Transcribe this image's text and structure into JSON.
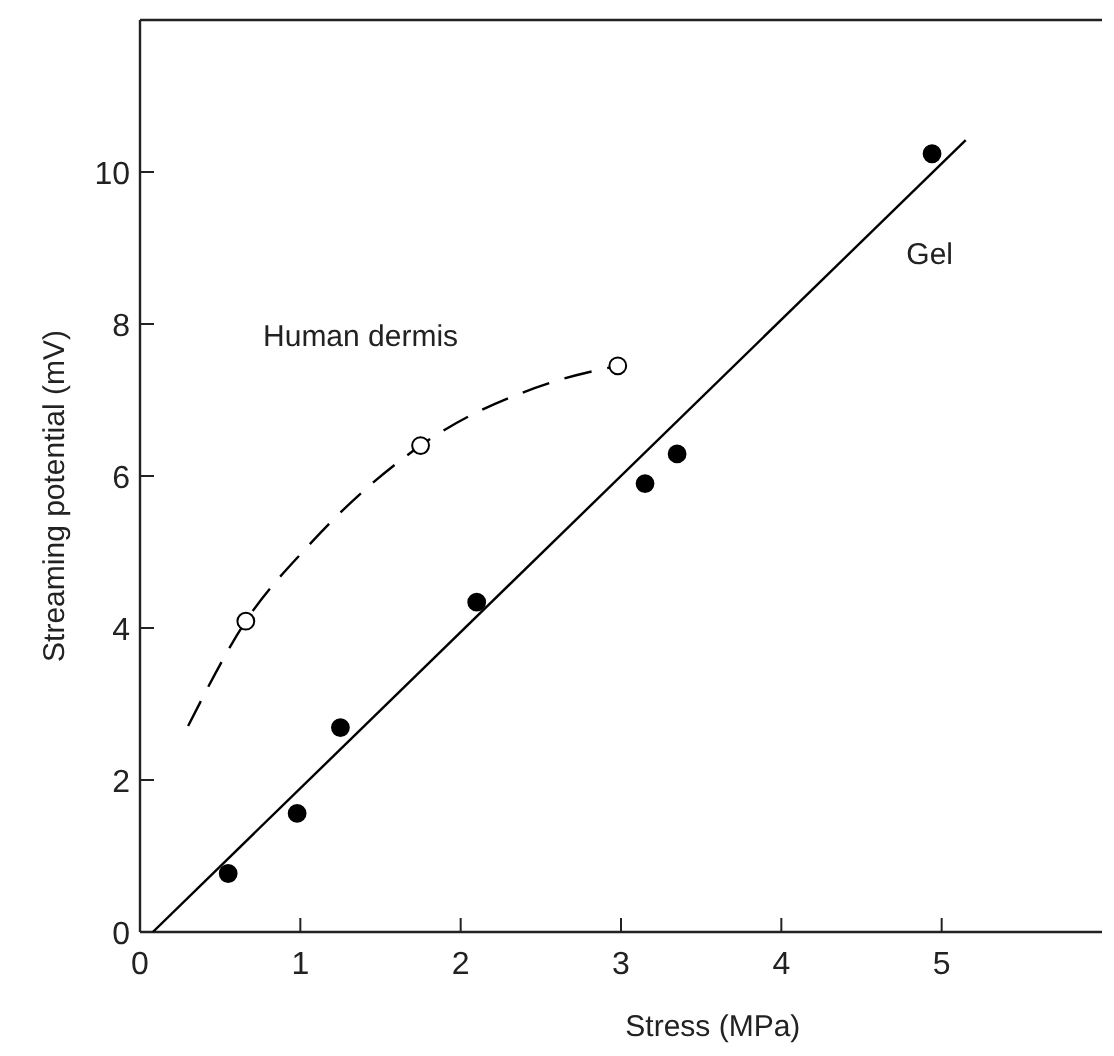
{
  "chart_data": {
    "type": "scatter",
    "xlabel": "Stress (MPa)",
    "ylabel": "Streaming potential (mV)",
    "xlim": [
      0,
      6
    ],
    "ylim": [
      0,
      12
    ],
    "xticks": [
      0,
      1,
      2,
      3,
      4,
      5
    ],
    "yticks": [
      0,
      2,
      4,
      6,
      8,
      10
    ],
    "grid": false,
    "series": [
      {
        "type": "scatter",
        "color": "#000000",
        "marker": "circle",
        "x": [
          0.55,
          0.98,
          1.25,
          2.1,
          3.15,
          3.35,
          4.94
        ],
        "values": [
          0.77,
          1.56,
          2.69,
          4.34,
          5.9,
          6.29,
          10.24
        ]
      },
      {
        "type": "scatter",
        "color": "#ffffff",
        "marker": "circle",
        "x": [
          0.66,
          1.75,
          2.98
        ],
        "values": [
          4.09,
          6.4,
          7.45
        ]
      },
      {
        "type": "line",
        "name": "Gel",
        "color": "#000000",
        "line_style": "solid",
        "marker": "none",
        "x": [
          0.08,
          5.15
        ],
        "values": [
          0,
          10.42
        ]
      },
      {
        "type": "line",
        "name": "Human dermis",
        "color": "#000000",
        "line_style": "dashed",
        "marker": "none",
        "x": [
          0.3,
          0.66,
          1.04,
          1.75,
          2.58,
          2.98
        ],
        "values": [
          2.71,
          4.09,
          5.06,
          6.4,
          7.24,
          7.45
        ]
      }
    ]
  }
}
